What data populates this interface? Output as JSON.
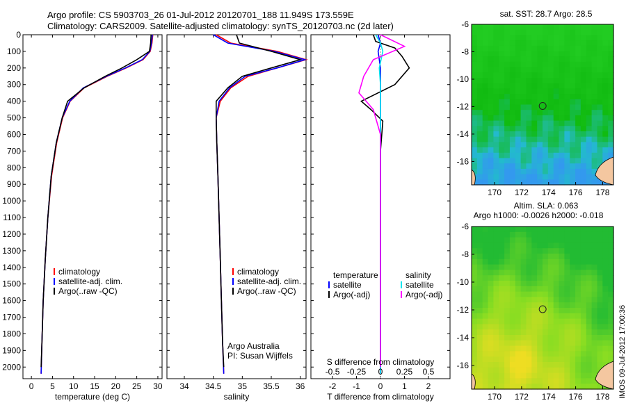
{
  "header": {
    "line1": "Argo profile: CS 5903703_26 01-Jul-2012 20120701_188 11.949S 173.559E",
    "line2": "Climatology: CARS2009. Satellite-adjusted climatology: synTS_20120703.nc (2d later)"
  },
  "colors": {
    "climatology": "#ff0000",
    "satellite": "#0000ff",
    "argo": "#000000",
    "sal_satellite": "#00e5ee",
    "sal_argo": "#ff00ff"
  },
  "chart_data": [
    {
      "type": "line",
      "id": "temperature",
      "xlabel": "temperature (deg C)",
      "ylabel": "",
      "xlim": [
        -2,
        31
      ],
      "ylim": [
        2070,
        0
      ],
      "xticks": [
        0,
        5,
        10,
        15,
        20,
        25,
        30
      ],
      "yticks": [
        0,
        100,
        200,
        300,
        400,
        500,
        600,
        700,
        800,
        900,
        1000,
        1100,
        1200,
        1300,
        1400,
        1500,
        1600,
        1700,
        1800,
        1900,
        2000
      ],
      "legend": [
        "climatology",
        "satellite-adj. clim.",
        "Argo(..raw -QC)"
      ],
      "series": [
        {
          "name": "climatology",
          "x": [
            28.8,
            28.6,
            28.2,
            26.5,
            22.5,
            18.0,
            12.5,
            9.2,
            7.4,
            6.0,
            4.8,
            3.9,
            3.3,
            2.8,
            2.5,
            2.3
          ],
          "y": [
            0,
            50,
            100,
            150,
            200,
            250,
            320,
            400,
            500,
            650,
            850,
            1100,
            1350,
            1600,
            1850,
            2040
          ]
        },
        {
          "name": "satellite-adj. clim.",
          "x": [
            28.7,
            28.5,
            28.1,
            26.3,
            22.3,
            17.8,
            12.3,
            9.1,
            7.3,
            5.9,
            4.7,
            3.9,
            3.3,
            2.8,
            2.5,
            2.3
          ],
          "y": [
            0,
            50,
            100,
            150,
            200,
            250,
            320,
            400,
            500,
            650,
            850,
            1100,
            1350,
            1600,
            1850,
            2040
          ]
        },
        {
          "name": "Argo(..raw -QC)",
          "x": [
            28.4,
            28.3,
            28.0,
            25.0,
            21.5,
            17.5,
            12.5,
            8.6,
            7.3,
            5.9,
            4.7,
            3.9,
            3.3,
            2.8,
            2.5,
            2.3
          ],
          "y": [
            0,
            50,
            100,
            150,
            200,
            250,
            320,
            400,
            500,
            650,
            850,
            1100,
            1350,
            1600,
            1850,
            2000
          ]
        }
      ]
    },
    {
      "type": "line",
      "id": "salinity",
      "xlabel": "salinity",
      "xlim": [
        33.7,
        36.1
      ],
      "ylim": [
        2070,
        0
      ],
      "xticks": [
        34,
        34.5,
        35,
        35.5,
        36
      ],
      "legend": [
        "climatology",
        "satellite-adj. clim.",
        "Argo(..raw -QC)"
      ],
      "annotation": [
        "Argo Australia",
        "PI: Susan Wijffels"
      ],
      "series": [
        {
          "name": "climatology",
          "x": [
            34.55,
            34.8,
            35.6,
            36.1,
            35.6,
            35.1,
            34.8,
            34.62,
            34.55,
            34.56,
            34.58,
            34.6,
            34.62,
            34.64,
            34.66,
            34.68
          ],
          "y": [
            0,
            50,
            100,
            150,
            200,
            250,
            320,
            400,
            500,
            650,
            850,
            1100,
            1350,
            1600,
            1850,
            2040
          ]
        },
        {
          "name": "satellite-adj. clim.",
          "x": [
            34.5,
            34.75,
            35.55,
            36.08,
            35.6,
            35.05,
            34.78,
            34.6,
            34.55,
            34.56,
            34.58,
            34.6,
            34.62,
            34.64,
            34.66,
            34.68
          ],
          "y": [
            0,
            50,
            100,
            150,
            200,
            250,
            320,
            400,
            500,
            650,
            850,
            1100,
            1350,
            1600,
            1850,
            2040
          ]
        },
        {
          "name": "Argo(..raw -QC)",
          "x": [
            34.9,
            34.95,
            35.5,
            36.0,
            35.5,
            35.0,
            34.75,
            34.55,
            34.55,
            34.56,
            34.58,
            34.6,
            34.62,
            34.64,
            34.66,
            34.68
          ],
          "y": [
            0,
            50,
            100,
            150,
            200,
            250,
            320,
            400,
            500,
            650,
            850,
            1100,
            1350,
            1600,
            1850,
            2000
          ]
        }
      ]
    },
    {
      "type": "line",
      "id": "difference",
      "xlabel": "T difference from climatology",
      "xlabel2": "S difference from climatology",
      "xlim": [
        -2.9,
        2.9
      ],
      "ylim": [
        2070,
        0
      ],
      "xticks": [
        -2,
        -1,
        0,
        1,
        2
      ],
      "xticks_top": [
        -0.5,
        -0.25,
        0,
        0.25,
        0.5
      ],
      "legend_title_t": "temperature",
      "legend_title_s": "salinity",
      "legend": [
        "satellite",
        "Argo(-adj)",
        "satellite",
        "Argo(-adj)"
      ],
      "series": [
        {
          "name": "T satellite",
          "x": [
            -0.1,
            0.0,
            -0.1,
            0.0,
            0.0,
            0.0,
            0.0,
            0.0,
            0.0,
            0.0,
            0.0,
            0.0
          ],
          "y": [
            0,
            50,
            100,
            200,
            300,
            400,
            500,
            700,
            1000,
            1400,
            1800,
            2040
          ]
        },
        {
          "name": "T Argo(-adj)",
          "x": [
            -0.3,
            -0.2,
            0.6,
            0.9,
            1.2,
            0.6,
            -0.8,
            -0.4,
            0.1,
            0.0,
            0.0,
            0.0,
            0.0
          ],
          "y": [
            0,
            40,
            80,
            130,
            200,
            300,
            400,
            450,
            520,
            700,
            1000,
            1400,
            2000
          ]
        },
        {
          "name": "S satellite",
          "x": [
            -0.2,
            0.0,
            0.1,
            -0.05,
            0.0,
            0.0,
            0.0,
            0.0,
            0.0,
            0.0
          ],
          "y": [
            0,
            50,
            100,
            200,
            300,
            500,
            800,
            1200,
            1600,
            2040
          ]
        },
        {
          "name": "S Argo(-adj)",
          "x": [
            0.0,
            1.0,
            -0.3,
            -0.7,
            -0.9,
            -0.3,
            0.0,
            0.0,
            0.0,
            0.0
          ],
          "y": [
            0,
            70,
            150,
            250,
            350,
            450,
            600,
            900,
            1500,
            2000
          ]
        }
      ]
    },
    {
      "type": "heatmap",
      "id": "sst-map",
      "title": "sat. SST: 28.7  Argo: 28.5",
      "xticks": [
        170,
        172,
        174,
        176,
        178
      ],
      "yticks": [
        -6,
        -8,
        -10,
        -12,
        -14,
        -16
      ],
      "xlim": [
        168.3,
        178.8
      ],
      "ylim": [
        -17.7,
        -6
      ],
      "marker": {
        "lon": 173.559,
        "lat": -11.949
      }
    },
    {
      "type": "heatmap",
      "id": "sla-map",
      "title": "Altim. SLA: 0.063",
      "subtitle": "Argo h1000: -0.0026 h2000: -0.018",
      "xticks": [
        170,
        172,
        174,
        176,
        178
      ],
      "yticks": [
        -6,
        -8,
        -10,
        -12,
        -14,
        -16
      ],
      "xlim": [
        168.3,
        178.8
      ],
      "ylim": [
        -17.7,
        -6
      ],
      "marker": {
        "lon": 173.559,
        "lat": -11.949
      }
    }
  ],
  "footer": {
    "stamp": "IMOS 09-Jul-2012 17:00:36"
  }
}
